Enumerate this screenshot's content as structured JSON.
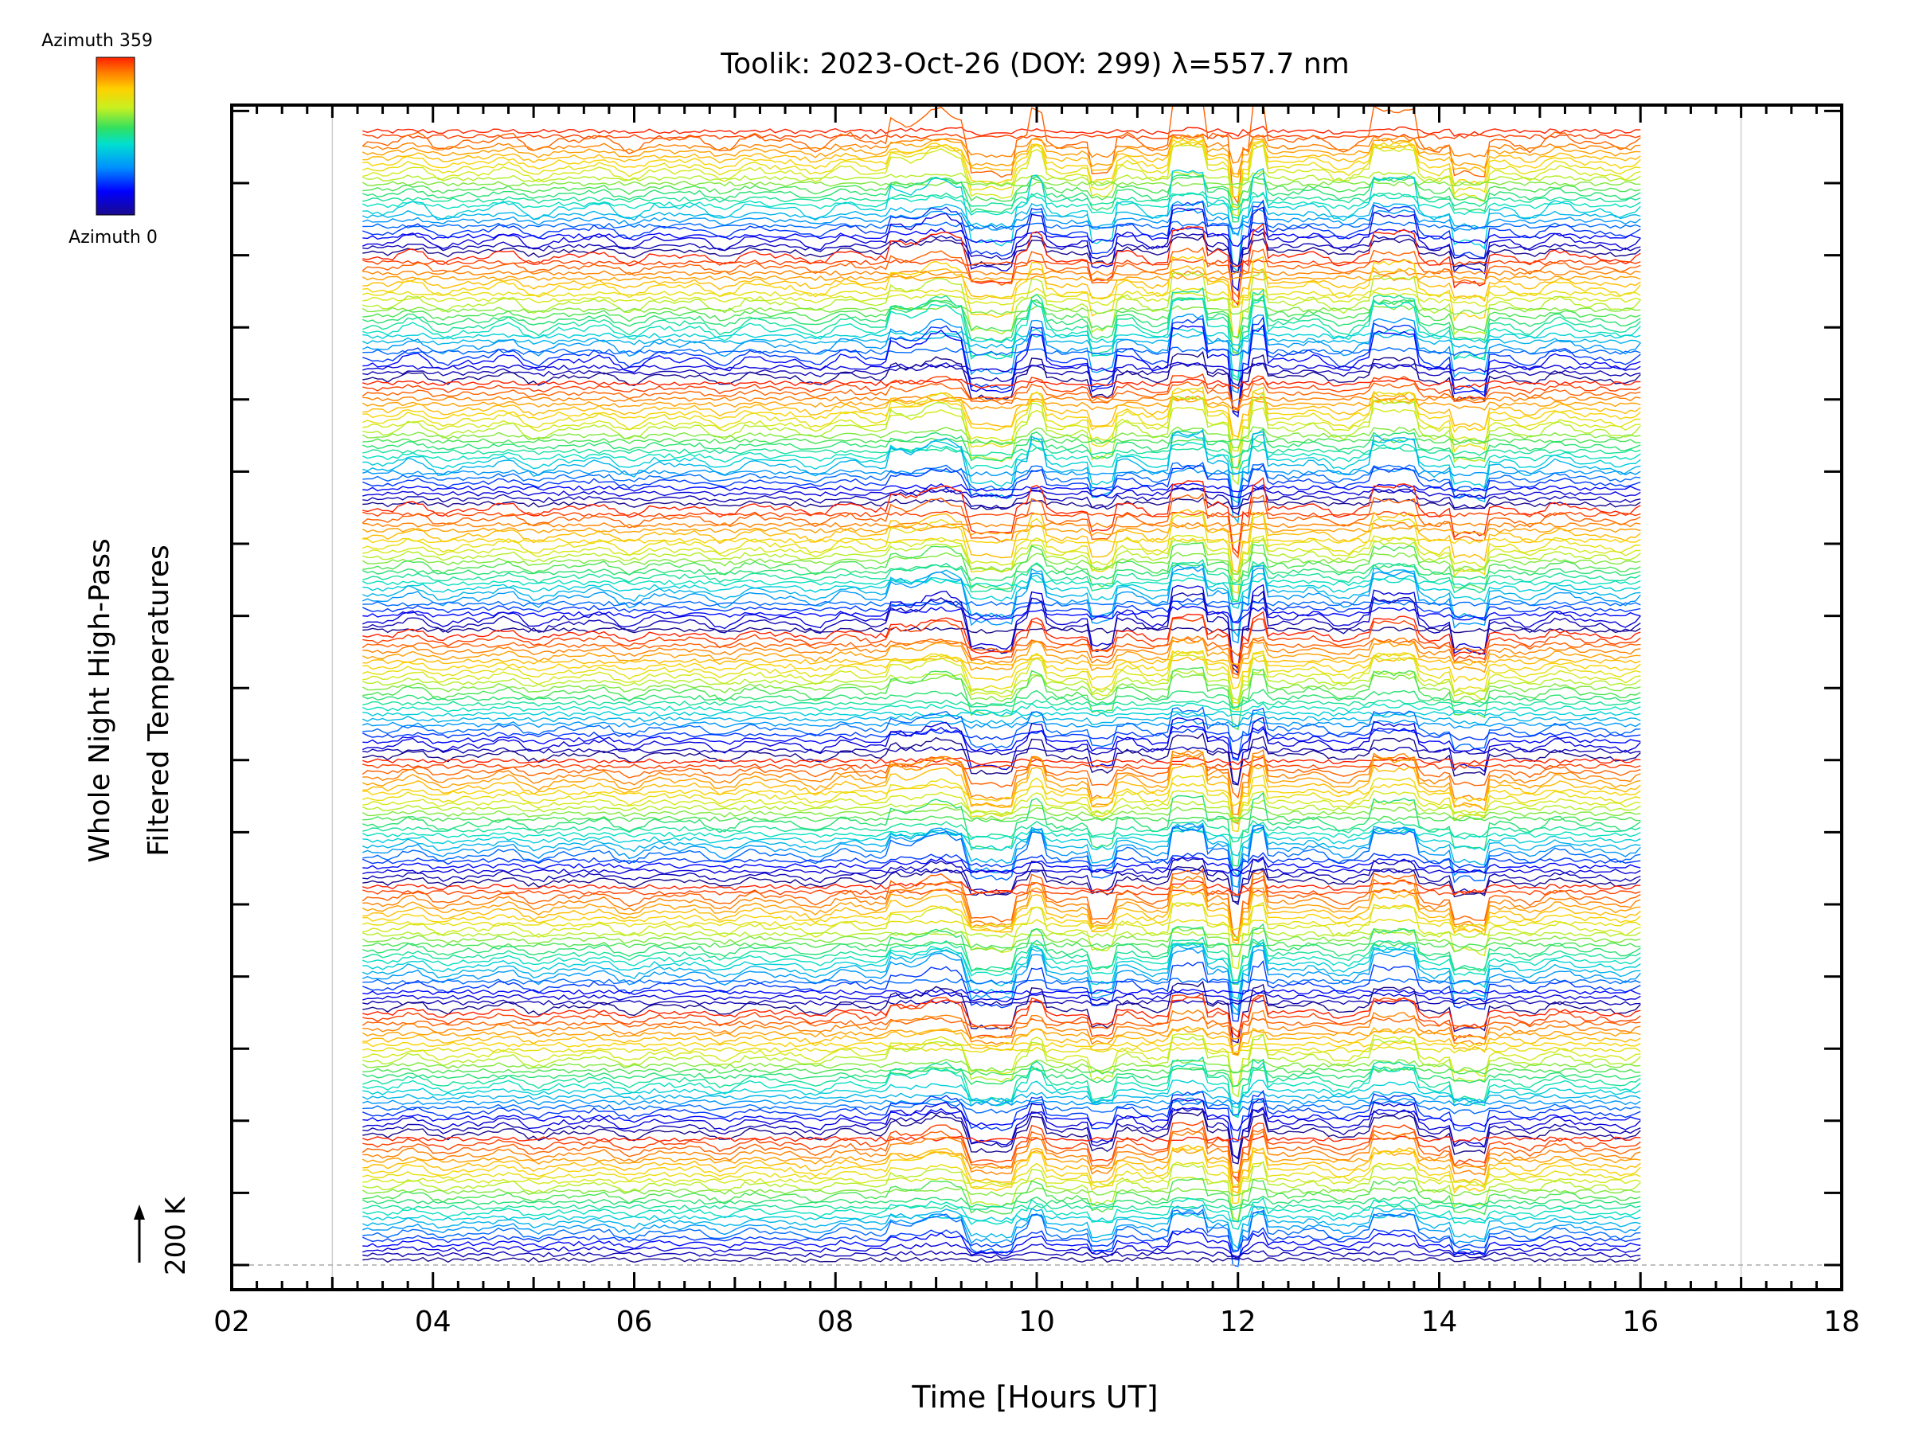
{
  "chart_data": {
    "type": "line",
    "title": "Toolik: 2023-Oct-26 (DOY: 299) λ=557.7 nm",
    "xlabel": "Time [Hours UT]",
    "ylabel_line1": "Whole Night High-Pass",
    "ylabel_line2": "Filtered Temperatures",
    "scale_label": "200 K",
    "xlim": [
      2,
      18
    ],
    "x_data_range": [
      3.3,
      16.0
    ],
    "x_ticks": [
      "02",
      "04",
      "06",
      "08",
      "10",
      "12",
      "14",
      "16",
      "18"
    ],
    "y_ticks_count": 17,
    "grid_x": [
      3,
      17
    ],
    "colorbar": {
      "top_label": "Azimuth 359",
      "bottom_label": "Azimuth 0",
      "colors": [
        "#1a0a8c",
        "#0000ff",
        "#0090ff",
        "#00e0d0",
        "#30e060",
        "#c8f020",
        "#ffd000",
        "#ff8000",
        "#ff2000"
      ]
    },
    "series_description_visible": false,
    "zenith_strips": 9,
    "lines_per_strip": 24
  }
}
